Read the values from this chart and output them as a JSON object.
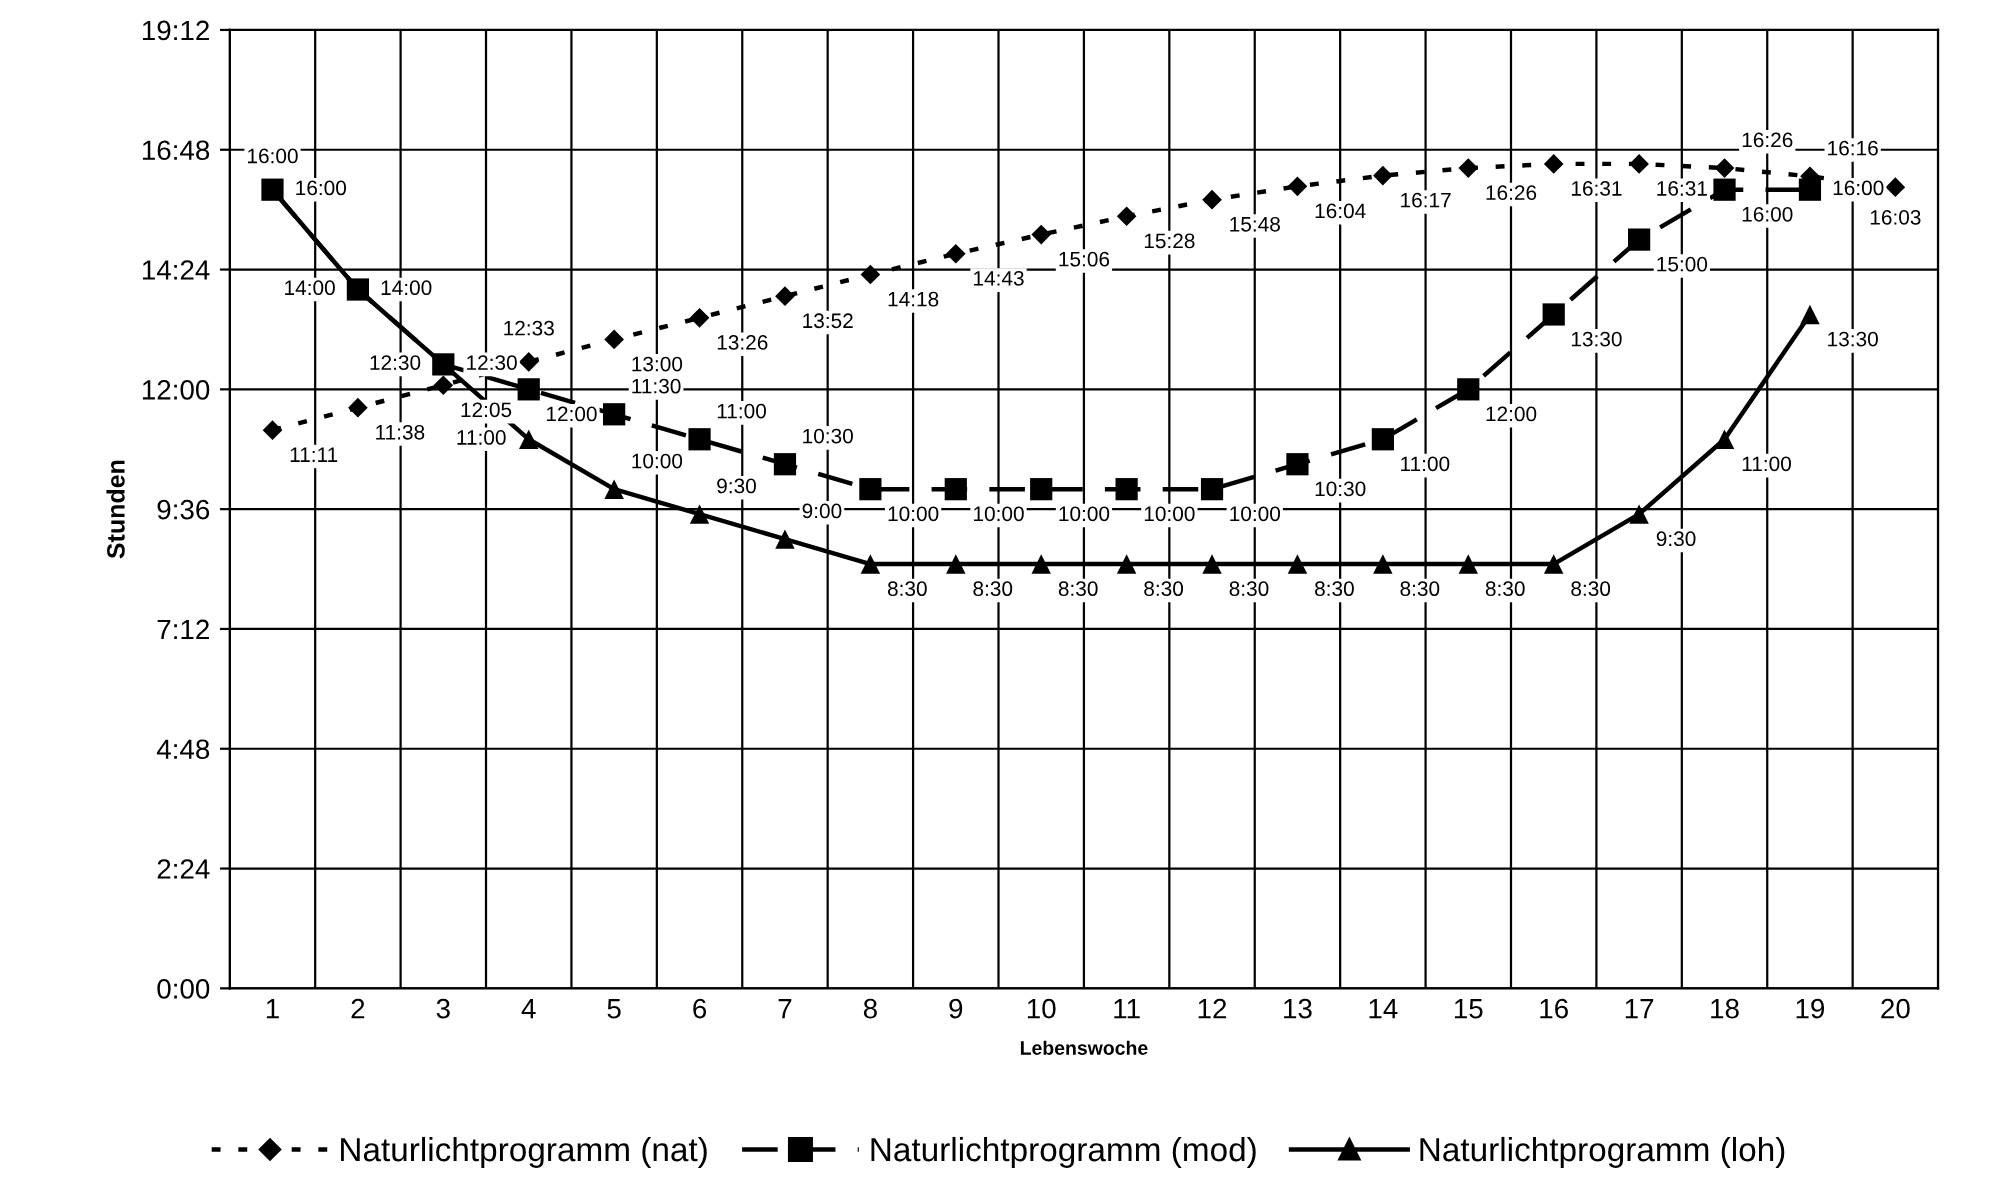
{
  "chart_data": {
    "type": "line",
    "xlabel": "Lebenswoche",
    "ylabel": "Stunden",
    "categories": [
      "1",
      "2",
      "3",
      "4",
      "5",
      "6",
      "7",
      "8",
      "9",
      "10",
      "11",
      "12",
      "13",
      "14",
      "15",
      "16",
      "17",
      "18",
      "19",
      "20"
    ],
    "ylim": [
      0,
      19.2
    ],
    "yticks": [
      {
        "value": 0,
        "label": "0:00"
      },
      {
        "value": 2.4,
        "label": "2:24"
      },
      {
        "value": 4.8,
        "label": "4:48"
      },
      {
        "value": 7.2,
        "label": "7:12"
      },
      {
        "value": 9.6,
        "label": "9:36"
      },
      {
        "value": 12,
        "label": "12:00"
      },
      {
        "value": 14.4,
        "label": "14:24"
      },
      {
        "value": 16.8,
        "label": "16:48"
      },
      {
        "value": 19.2,
        "label": "19:12"
      }
    ],
    "grid": true,
    "legend": "bottom",
    "series": [
      {
        "name": "Naturlichtprogramm (nat)",
        "color": "#000000",
        "marker": "diamond",
        "line_style": "dotted",
        "values": [
          11.183,
          11.633,
          12.083,
          12.55,
          13.0,
          13.433,
          13.867,
          14.3,
          14.717,
          15.1,
          15.467,
          15.8,
          16.067,
          16.283,
          16.433,
          16.517,
          16.517,
          16.433,
          16.267,
          16.05
        ],
        "value_labels": [
          "11:11",
          "11:38",
          "12:05",
          "12:33",
          "13:00",
          "13:26",
          "13:52",
          "14:18",
          "14:43",
          "15:06",
          "15:28",
          "15:48",
          "16:04",
          "16:17",
          "16:26",
          "16:31",
          "16:31",
          "16:26",
          "16:16",
          "16:03"
        ]
      },
      {
        "name": "Naturlichtprogramm (mod)",
        "color": "#000000",
        "marker": "square",
        "line_style": "dashed",
        "values": [
          16,
          14,
          12.5,
          12,
          11.5,
          11,
          10.5,
          10,
          10,
          10,
          10,
          10,
          10.5,
          11,
          12,
          13.5,
          15,
          16,
          16,
          null
        ],
        "value_labels": [
          "16:00",
          "14:00",
          "12:30",
          "12:00",
          "11:30",
          "11:00",
          "10:30",
          "10:00",
          "10:00",
          "10:00",
          "10:00",
          "10:00",
          "10:30",
          "11:00",
          "12:00",
          "13:30",
          "15:00",
          "16:00",
          "16:00",
          null
        ]
      },
      {
        "name": "Naturlichtprogramm (loh)",
        "color": "#000000",
        "marker": "triangle",
        "line_style": "solid",
        "values": [
          16,
          14,
          12.5,
          11,
          10,
          9.5,
          9,
          8.5,
          8.5,
          8.5,
          8.5,
          8.5,
          8.5,
          8.5,
          8.5,
          8.5,
          9.5,
          11,
          13.5,
          null
        ],
        "value_labels": [
          "16:00",
          "14:00",
          "12:30",
          "11:00",
          "10:00",
          "9:30",
          "9:00",
          "8:30",
          "8:30",
          "8:30",
          "8:30",
          "8:30",
          "8:30",
          "8:30",
          "8:30",
          "8:30",
          "9:30",
          "11:00",
          "13:30",
          null
        ]
      }
    ]
  }
}
